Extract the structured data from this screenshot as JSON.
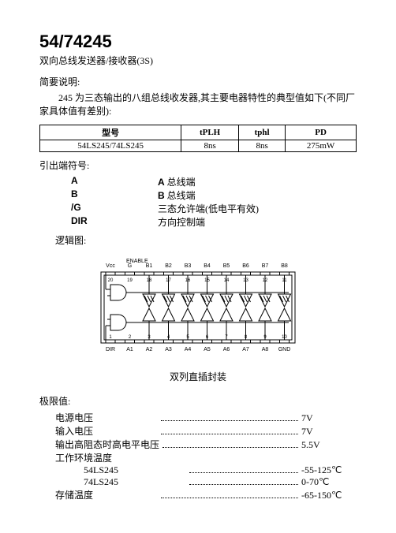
{
  "title": "54/74245",
  "subtitle": "双向总线发送器/接收器(3S)",
  "brief_heading": "简要说明:",
  "brief_text": "245 为三态输出的八组总线收发器,其主要电器特性的典型值如下(不同厂家具体值有差别):",
  "spec_table": {
    "headers": [
      "型号",
      "tPLH",
      "tphl",
      "PD"
    ],
    "row": [
      "54LS245/74LS245",
      "8ns",
      "8ns",
      "275mW"
    ]
  },
  "pins_heading": "引出端符号:",
  "pins": [
    {
      "sym": "A",
      "desc": "A 总线端"
    },
    {
      "sym": "B",
      "desc": "B 总线端"
    },
    {
      "sym": "/G",
      "desc": "三态允许端(低电平有效)"
    },
    {
      "sym": "DIR",
      "desc": "方向控制端"
    }
  ],
  "logic_label": "逻辑图:",
  "enable_label": "ENABLE",
  "top_pins": [
    "Vcc",
    "G",
    "B1",
    "B2",
    "B3",
    "B4",
    "B5",
    "B6",
    "B7",
    "B8"
  ],
  "top_nums": [
    "20",
    "19",
    "18",
    "17",
    "16",
    "15",
    "14",
    "13",
    "12",
    "11"
  ],
  "bot_nums": [
    "1",
    "2",
    "3",
    "4",
    "5",
    "6",
    "7",
    "8",
    "9",
    "10"
  ],
  "bot_pins": [
    "DIR",
    "A1",
    "A2",
    "A3",
    "A4",
    "A5",
    "A6",
    "A7",
    "A8",
    "GND"
  ],
  "caption": "双列直插封装",
  "limits_heading": "极限值:",
  "limits": [
    {
      "lbl": "电源电压",
      "val": "7V",
      "dots": true
    },
    {
      "lbl": "输入电压",
      "val": "7V",
      "dots": true
    },
    {
      "lbl": "输出高阻态时高电平电压",
      "val": "5.5V",
      "dots": true
    },
    {
      "lbl": "工作环境温度",
      "val": "",
      "dots": false
    },
    {
      "lbl": "54LS245",
      "val": "-55-125℃",
      "dots": true,
      "sub": true
    },
    {
      "lbl": "74LS245",
      "val": "0-70℃",
      "dots": true,
      "sub": true
    },
    {
      "lbl": "存储温度",
      "val": "-65-150℃",
      "dots": true
    }
  ],
  "colors": {
    "stroke": "#000000",
    "bg": "#ffffff"
  }
}
